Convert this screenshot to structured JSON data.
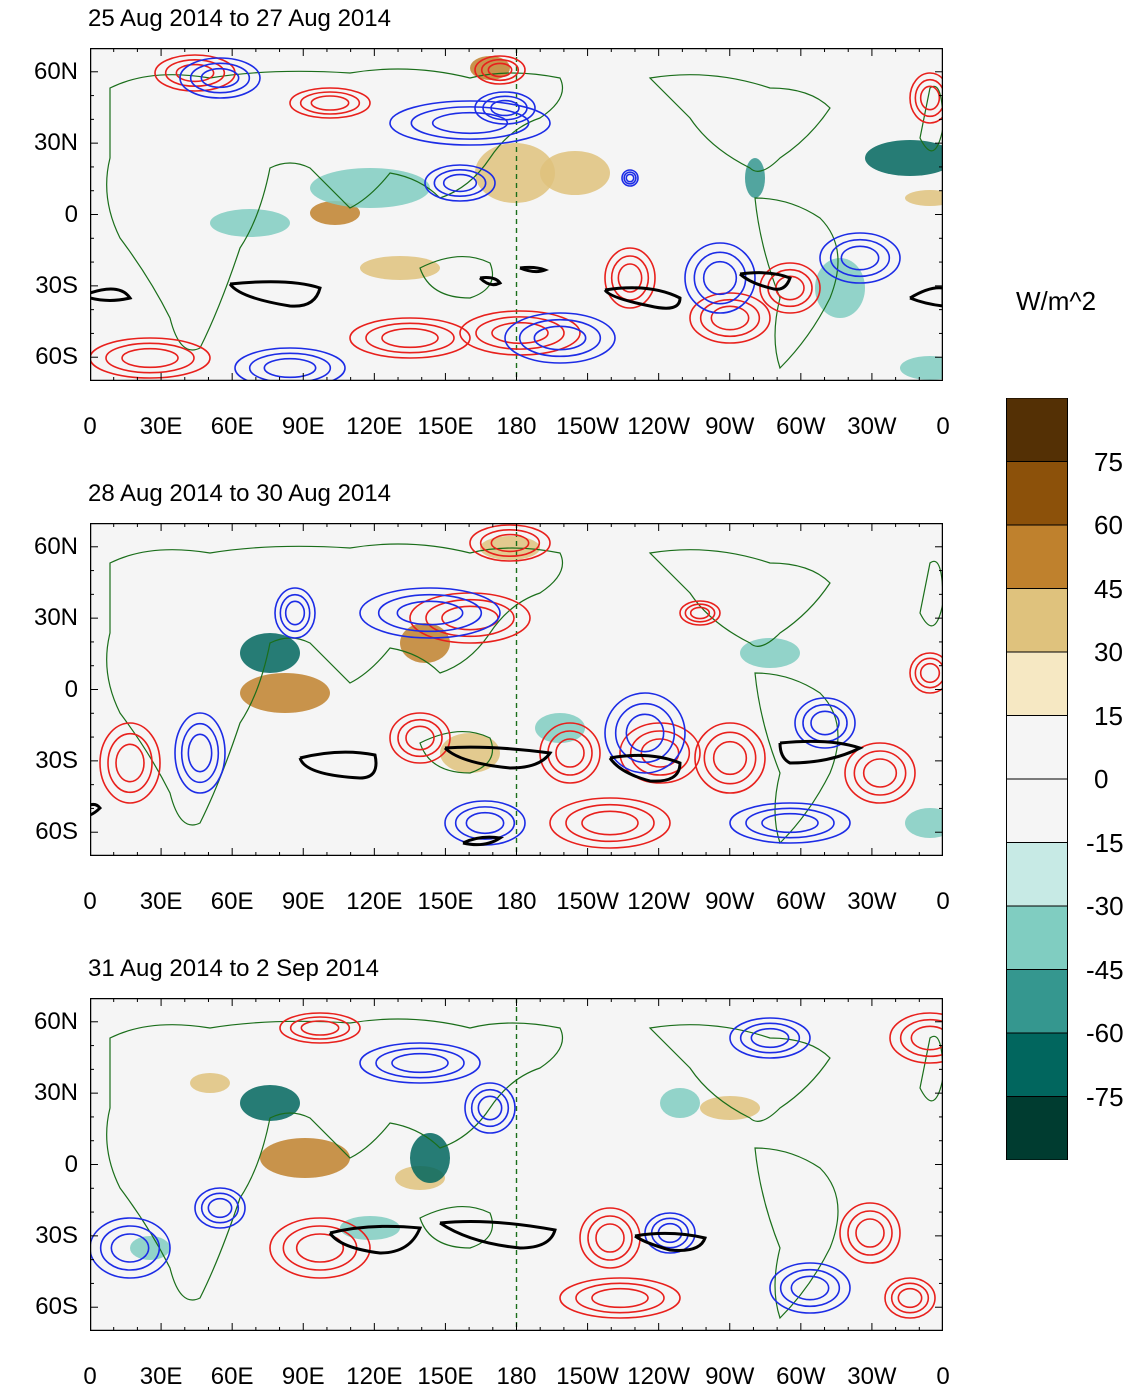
{
  "units_label": "W/m^2",
  "panels": [
    {
      "title": "25 Aug 2014 to 27 Aug 2014"
    },
    {
      "title": "28 Aug 2014 to 30 Aug 2014"
    },
    {
      "title": "31 Aug 2014 to 2 Sep 2014"
    }
  ],
  "lat_labels": [
    "60N",
    "30N",
    "0",
    "30S",
    "60S"
  ],
  "lat_values": [
    60,
    30,
    0,
    -30,
    -60
  ],
  "lon_labels": [
    "0",
    "30E",
    "60E",
    "90E",
    "120E",
    "150E",
    "180",
    "150W",
    "120W",
    "90W",
    "60W",
    "30W",
    "0"
  ],
  "lon_values": [
    0,
    30,
    60,
    90,
    120,
    150,
    180,
    210,
    240,
    270,
    300,
    330,
    360
  ],
  "colorbar": {
    "labels": [
      "75",
      "60",
      "45",
      "30",
      "15",
      "0",
      "-15",
      "-30",
      "-45",
      "-60",
      "-75"
    ],
    "colors": [
      "#543005",
      "#8c510a",
      "#bf812d",
      "#dfc27d",
      "#f6e8c3",
      "#f5f5f5",
      "#f5f5f5",
      "#c7eae5",
      "#80cdc1",
      "#35978f",
      "#01665e",
      "#003c30"
    ]
  },
  "colors": {
    "positive_contour": "#e8201c",
    "negative_contour": "#1c2ce6",
    "region_outline": "#000000",
    "coastline": "#1a6e1a",
    "dateline": "#1a6e1a"
  }
}
